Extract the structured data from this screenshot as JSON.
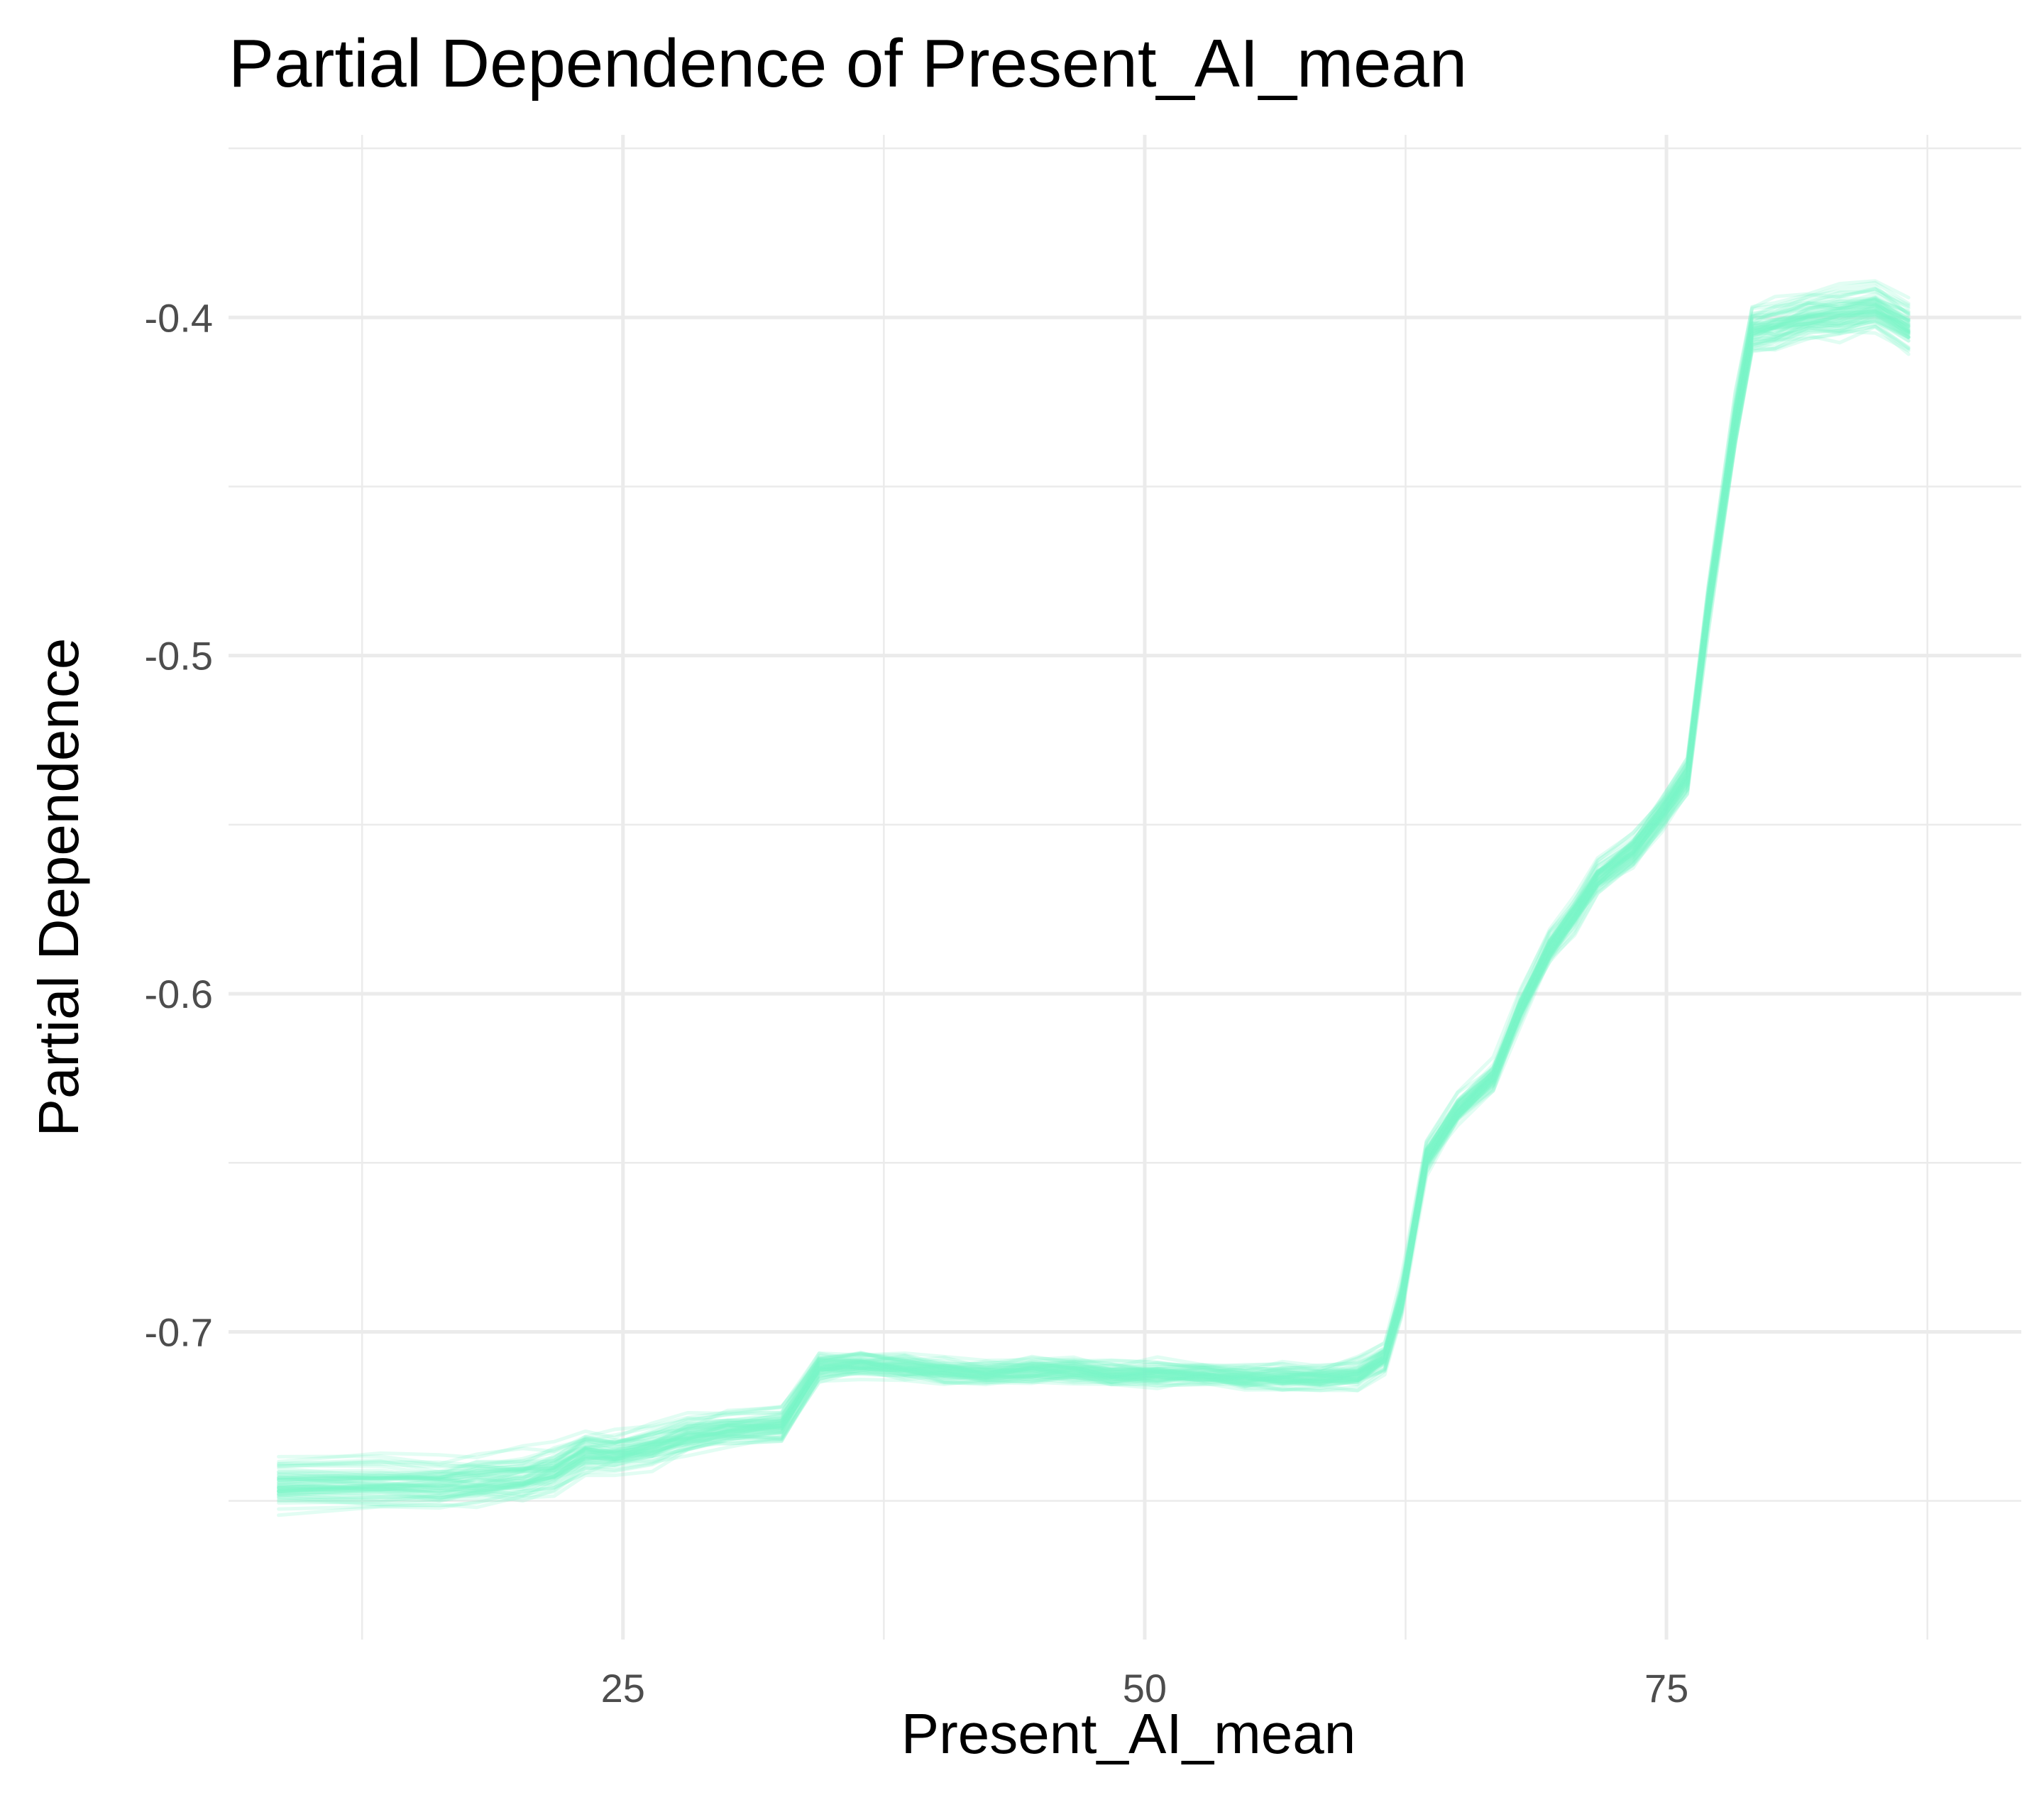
{
  "chart_data": {
    "type": "line",
    "title": "Partial Dependence of Present_AI_mean",
    "xlabel": "Present_AI_mean",
    "ylabel": "Partial Dependence",
    "xlim": [
      6.1,
      92.0
    ],
    "ylim": [
      -0.791,
      -0.346
    ],
    "x_ticks": [
      25,
      50,
      75
    ],
    "x_tick_labels": [
      "25",
      "50",
      "75"
    ],
    "y_ticks": [
      -0.7,
      -0.6,
      -0.5,
      -0.4
    ],
    "y_tick_labels": [
      "-0.7",
      "-0.6",
      "-0.5",
      "-0.4"
    ],
    "grid": true,
    "legend": "none",
    "line_color": "#7df5c9",
    "n_lines": 60,
    "x": [
      8.5,
      13.4,
      16.2,
      18.0,
      20.2,
      21.7,
      23.2,
      24.6,
      26.4,
      28.1,
      30.0,
      32.6,
      34.4,
      36.4,
      38.5,
      40.4,
      42.4,
      44.6,
      46.6,
      48.4,
      50.6,
      52.8,
      54.8,
      56.6,
      58.4,
      60.2,
      61.5,
      62.3,
      63.5,
      65.0,
      66.7,
      68.0,
      69.4,
      70.6,
      71.7,
      73.4,
      74.8,
      76.0,
      77.0,
      78.3,
      79.1,
      80.2,
      81.8,
      83.3,
      85.0,
      86.6
    ],
    "center_y": [
      -0.744,
      -0.744,
      -0.744,
      -0.743,
      -0.742,
      -0.74,
      -0.735,
      -0.735,
      -0.733,
      -0.73,
      -0.728,
      -0.727,
      -0.71,
      -0.709,
      -0.71,
      -0.711,
      -0.712,
      -0.711,
      -0.711,
      -0.712,
      -0.712,
      -0.712,
      -0.713,
      -0.713,
      -0.713,
      -0.712,
      -0.707,
      -0.69,
      -0.648,
      -0.634,
      -0.624,
      -0.604,
      -0.586,
      -0.576,
      -0.565,
      -0.557,
      -0.546,
      -0.535,
      -0.485,
      -0.43,
      -0.403,
      -0.402,
      -0.399,
      -0.398,
      -0.396,
      -0.402
    ],
    "band_half_width": [
      0.012,
      0.012,
      0.012,
      0.012,
      0.012,
      0.011,
      0.01,
      0.009,
      0.009,
      0.008,
      0.008,
      0.008,
      0.005,
      0.005,
      0.005,
      0.005,
      0.005,
      0.005,
      0.005,
      0.005,
      0.005,
      0.005,
      0.005,
      0.005,
      0.005,
      0.006,
      0.006,
      0.008,
      0.006,
      0.006,
      0.006,
      0.006,
      0.007,
      0.007,
      0.007,
      0.008,
      0.008,
      0.008,
      0.01,
      0.012,
      0.011,
      0.011,
      0.011,
      0.011,
      0.011,
      0.011
    ]
  }
}
